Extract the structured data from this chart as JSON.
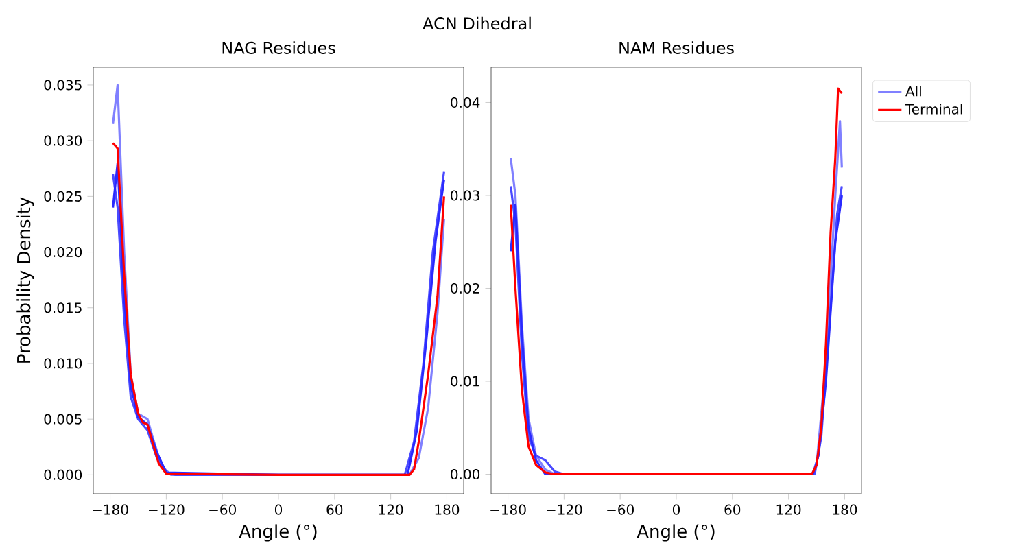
{
  "chart_data": [
    {
      "type": "line",
      "title": "NAG Residues",
      "xlabel": "Angle (°)",
      "ylabel": "Probability Density",
      "annotations": [
        "ACN Dihedral"
      ],
      "grid": false,
      "legend": false,
      "xlim": [
        -198,
        198
      ],
      "ylim": [
        -0.0017,
        0.0366
      ],
      "xticks": [
        {
          "value": -180,
          "label": "−180"
        },
        {
          "value": -120,
          "label": "−120"
        },
        {
          "value": -60,
          "label": "−60"
        },
        {
          "value": 0,
          "label": "0"
        },
        {
          "value": 60,
          "label": "60"
        },
        {
          "value": 120,
          "label": "120"
        },
        {
          "value": 180,
          "label": "180"
        }
      ],
      "yticks": [
        {
          "value": 0,
          "label": "0.000"
        },
        {
          "value": 0.005,
          "label": "0.005"
        },
        {
          "value": 0.01,
          "label": "0.010"
        },
        {
          "value": 0.015,
          "label": "0.015"
        },
        {
          "value": 0.02,
          "label": "0.020"
        },
        {
          "value": 0.025,
          "label": "0.025"
        },
        {
          "value": 0.03,
          "label": "0.030"
        },
        {
          "value": 0.035,
          "label": "0.035"
        }
      ],
      "series": [
        {
          "color": "#8080ff",
          "x": [
            -177,
            -172,
            -165,
            -158,
            -150,
            -140,
            -135,
            -125,
            -115,
            0,
            140,
            150,
            160,
            170,
            177
          ],
          "values": [
            0.0315,
            0.035,
            0.02,
            0.009,
            0.0055,
            0.005,
            0.0035,
            0.0008,
            0,
            0,
            0,
            0.0015,
            0.006,
            0.0145,
            0.023
          ]
        },
        {
          "color": "#4a4aff",
          "x": [
            -177,
            -172,
            -165,
            -158,
            -150,
            -140,
            -130,
            -120,
            -110,
            0,
            135,
            145,
            155,
            165,
            177
          ],
          "values": [
            0.027,
            0.024,
            0.014,
            0.007,
            0.005,
            0.004,
            0.0015,
            0.0002,
            0,
            0,
            0,
            0.003,
            0.01,
            0.02,
            0.0272
          ]
        },
        {
          "color": "#2a2aff",
          "x": [
            -177,
            -172,
            -165,
            -158,
            -150,
            -140,
            -130,
            -120,
            0,
            138,
            148,
            158,
            168,
            177
          ],
          "values": [
            0.024,
            0.028,
            0.016,
            0.008,
            0.0052,
            0.0045,
            0.002,
            0.0002,
            0,
            0,
            0.004,
            0.012,
            0.021,
            0.0265
          ]
        },
        {
          "color": "#ff0000",
          "x": [
            -177,
            -172,
            -165,
            -158,
            -150,
            -145,
            -140,
            -135,
            -128,
            -120,
            0,
            140,
            145,
            150,
            160,
            170,
            177
          ],
          "values": [
            0.0298,
            0.0293,
            0.018,
            0.009,
            0.0055,
            0.0047,
            0.0045,
            0.003,
            0.001,
            0.0001,
            0,
            0,
            0.0005,
            0.003,
            0.009,
            0.016,
            0.025
          ]
        }
      ]
    },
    {
      "type": "line",
      "title": "NAM Residues",
      "xlabel": "Angle (°)",
      "grid": false,
      "legend": "right",
      "xlim": [
        -198,
        198
      ],
      "ylim": [
        -0.0021,
        0.0438
      ],
      "xticks": [
        {
          "value": -180,
          "label": "−180"
        },
        {
          "value": -120,
          "label": "−120"
        },
        {
          "value": -60,
          "label": "−60"
        },
        {
          "value": 0,
          "label": "0"
        },
        {
          "value": 60,
          "label": "60"
        },
        {
          "value": 120,
          "label": "120"
        },
        {
          "value": 180,
          "label": "180"
        }
      ],
      "yticks": [
        {
          "value": 0,
          "label": "0.00"
        },
        {
          "value": 0.01,
          "label": "0.01"
        },
        {
          "value": 0.02,
          "label": "0.02"
        },
        {
          "value": 0.03,
          "label": "0.03"
        },
        {
          "value": 0.04,
          "label": "0.04"
        }
      ],
      "series": [
        {
          "name": "All",
          "color": "#8080ff",
          "x": [
            -177,
            -172,
            -165,
            -158,
            -150,
            -140,
            -130,
            0,
            145,
            150,
            160,
            170,
            175,
            177
          ],
          "values": [
            0.034,
            0.03,
            0.016,
            0.006,
            0.002,
            0.0005,
            0,
            0,
            0,
            0.001,
            0.012,
            0.03,
            0.038,
            0.033
          ]
        },
        {
          "color": "#4a4aff",
          "x": [
            -177,
            -172,
            -165,
            -158,
            -150,
            -140,
            -130,
            -120,
            0,
            148,
            155,
            165,
            172,
            177
          ],
          "values": [
            0.031,
            0.027,
            0.013,
            0.004,
            0.002,
            0.0015,
            0.0003,
            0,
            0,
            0,
            0.004,
            0.018,
            0.028,
            0.031
          ]
        },
        {
          "color": "#2a2aff",
          "x": [
            -177,
            -172,
            -165,
            -158,
            -150,
            -140,
            0,
            146,
            152,
            160,
            170,
            177
          ],
          "values": [
            0.024,
            0.029,
            0.015,
            0.005,
            0.0015,
            0,
            0,
            0,
            0.002,
            0.01,
            0.025,
            0.03
          ]
        },
        {
          "name": "Terminal",
          "color": "#ff0000",
          "x": [
            -177,
            -172,
            -165,
            -158,
            -150,
            -140,
            -130,
            0,
            145,
            150,
            155,
            160,
            165,
            170,
            173,
            177
          ],
          "values": [
            0.029,
            0.02,
            0.009,
            0.003,
            0.001,
            0.0002,
            0,
            0,
            0,
            0.001,
            0.005,
            0.014,
            0.026,
            0.034,
            0.0415,
            0.041
          ]
        }
      ]
    }
  ]
}
